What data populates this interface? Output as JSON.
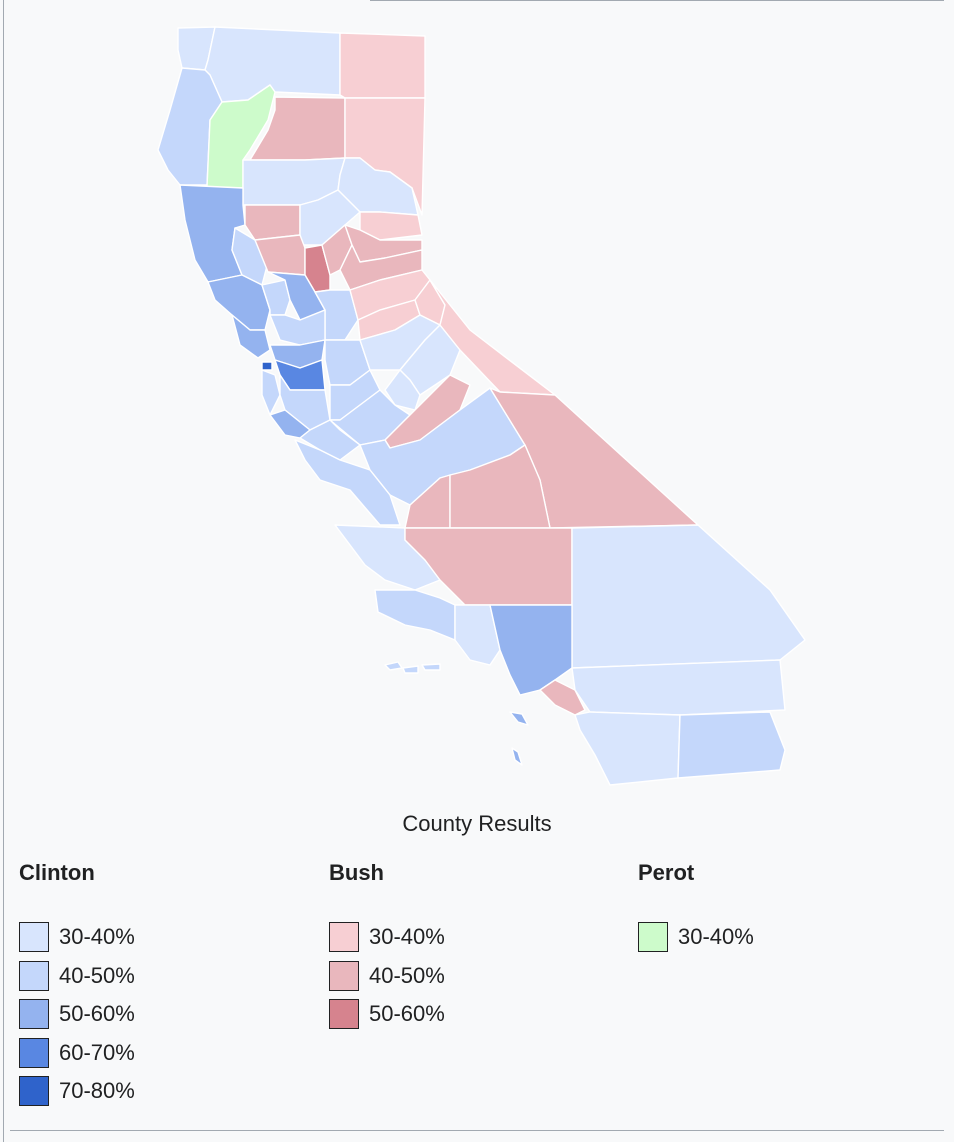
{
  "caption": "County Results",
  "legend": [
    {
      "candidate": "Clinton",
      "items": [
        {
          "label": "30-40%",
          "color": "#d8e5fd"
        },
        {
          "label": "40-50%",
          "color": "#c4d7fb"
        },
        {
          "label": "50-60%",
          "color": "#94b3ef"
        },
        {
          "label": "60-70%",
          "color": "#5987e2"
        },
        {
          "label": "70-80%",
          "color": "#2f63cb"
        }
      ]
    },
    {
      "candidate": "Bush",
      "items": [
        {
          "label": "30-40%",
          "color": "#f7cfd3"
        },
        {
          "label": "40-50%",
          "color": "#e9b7bd"
        },
        {
          "label": "50-60%",
          "color": "#d6838e"
        }
      ]
    },
    {
      "candidate": "Perot",
      "items": [
        {
          "label": "30-40%",
          "color": "#cdfbcb"
        }
      ]
    }
  ]
}
